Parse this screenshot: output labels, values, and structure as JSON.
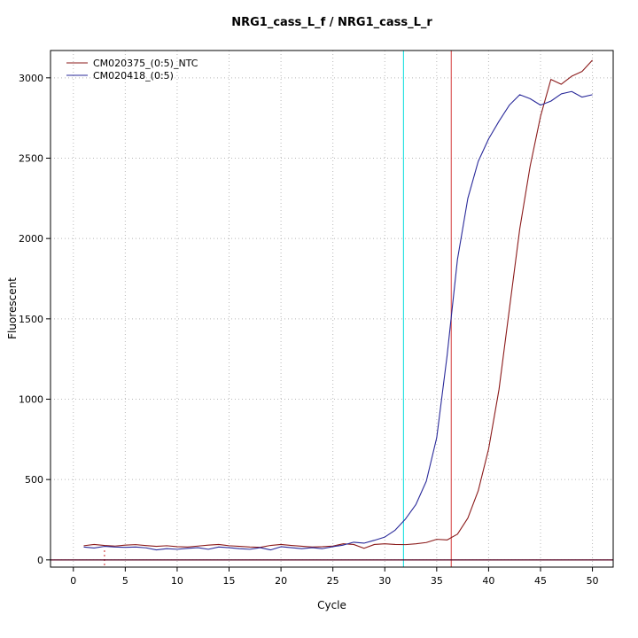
{
  "chart_data": {
    "type": "line",
    "title": "NRG1_cass_L_f / NRG1_cass_L_r",
    "xlabel": "Cycle",
    "ylabel": "Fluorescent",
    "xlim": [
      -2.2,
      52
    ],
    "ylim": [
      -45,
      3170
    ],
    "xticks": [
      0,
      5,
      10,
      15,
      20,
      25,
      30,
      35,
      40,
      45,
      50
    ],
    "yticks": [
      0,
      500,
      1000,
      1500,
      2000,
      2500,
      3000
    ],
    "grid": true,
    "grid_color": "#b8b8b8",
    "legend_position": "top-left",
    "series": [
      {
        "name": "CM020375_(0:5)_NTC",
        "color": "#8b1a1a",
        "x": [
          1,
          2,
          3,
          4,
          5,
          6,
          7,
          8,
          9,
          10,
          11,
          12,
          13,
          14,
          15,
          16,
          17,
          18,
          19,
          20,
          21,
          22,
          23,
          24,
          25,
          26,
          27,
          28,
          29,
          30,
          31,
          32,
          33,
          34,
          35,
          36,
          37,
          38,
          39,
          40,
          41,
          42,
          43,
          44,
          45,
          46,
          47,
          48,
          49,
          50
        ],
        "values": [
          88,
          96,
          90,
          86,
          92,
          95,
          89,
          84,
          88,
          82,
          80,
          86,
          92,
          96,
          88,
          84,
          80,
          78,
          90,
          96,
          90,
          85,
          80,
          82,
          86,
          100,
          96,
          72,
          96,
          100,
          96,
          95,
          100,
          108,
          128,
          124,
          160,
          260,
          430,
          690,
          1060,
          1560,
          2060,
          2450,
          2760,
          2990,
          2960,
          3010,
          3040,
          3110
        ]
      },
      {
        "name": "CM020418_(0:5)",
        "color": "#2a2a9a",
        "x": [
          1,
          2,
          3,
          4,
          5,
          6,
          7,
          8,
          9,
          10,
          11,
          12,
          13,
          14,
          15,
          16,
          17,
          18,
          19,
          20,
          21,
          22,
          23,
          24,
          25,
          26,
          27,
          28,
          29,
          30,
          31,
          32,
          33,
          34,
          35,
          36,
          37,
          38,
          39,
          40,
          41,
          42,
          43,
          44,
          45,
          46,
          47,
          48,
          49,
          50
        ],
        "values": [
          80,
          74,
          84,
          80,
          78,
          80,
          75,
          62,
          70,
          66,
          72,
          76,
          66,
          80,
          76,
          70,
          66,
          76,
          62,
          82,
          76,
          70,
          76,
          70,
          82,
          92,
          110,
          104,
          122,
          142,
          185,
          255,
          345,
          490,
          760,
          1270,
          1870,
          2250,
          2480,
          2620,
          2730,
          2830,
          2895,
          2870,
          2830,
          2855,
          2900,
          2915,
          2880,
          2895
        ]
      }
    ],
    "vlines": [
      {
        "name": "ct-line-cyan",
        "x": 31.8,
        "color": "#00dcdc",
        "style": "solid",
        "y_from": -45,
        "y_to": 3170
      },
      {
        "name": "ct-line-red",
        "x": 36.4,
        "color": "#d43d3d",
        "style": "solid",
        "y_from": -45,
        "y_to": 3170
      },
      {
        "name": "takeoff-marker-red",
        "x": 3,
        "color": "#cc2222",
        "style": "dotted",
        "y_from": -45,
        "y_to": 60
      }
    ],
    "hlines": [
      {
        "name": "threshold-baseline",
        "y": 0,
        "color": "#550022",
        "style": "solid"
      }
    ]
  }
}
